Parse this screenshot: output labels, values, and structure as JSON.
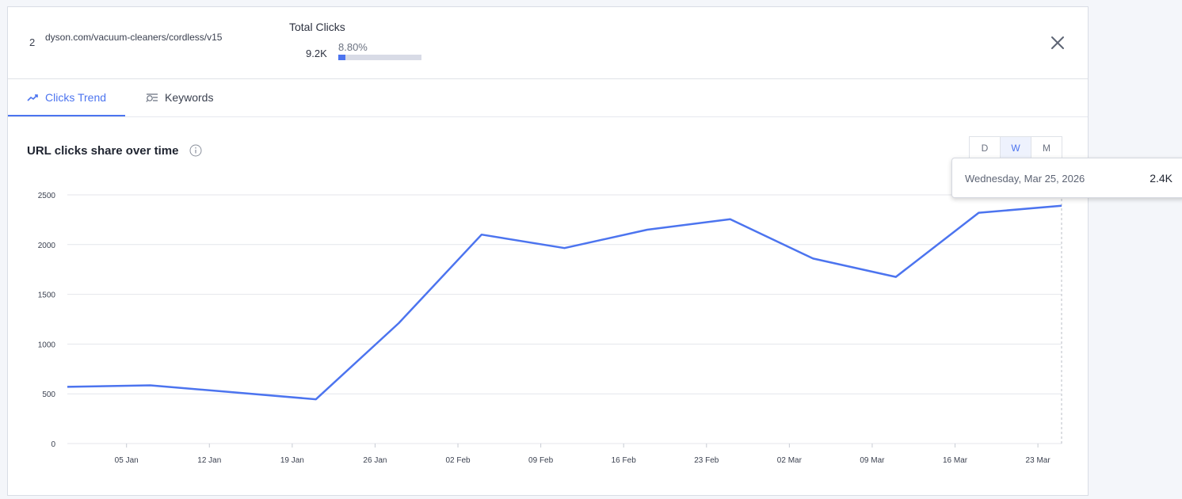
{
  "header": {
    "row_number": "2",
    "url": "dyson.com/vacuum-cleaners/cordless/v15",
    "total_clicks_label": "Total Clicks",
    "total_clicks_value": "9.2K",
    "share_percent_label": "8.80%",
    "share_fraction": 0.088
  },
  "tabs": [
    {
      "label": "Clicks Trend",
      "icon": "trend-up-icon",
      "active": true
    },
    {
      "label": "Keywords",
      "icon": "keyword-search-icon",
      "active": false
    }
  ],
  "chart_section": {
    "title": "URL clicks share over time",
    "granularity_options": [
      "D",
      "W",
      "M"
    ],
    "selected_granularity": "W"
  },
  "tooltip": {
    "date": "Wednesday, Mar 25, 2026",
    "value": "2.4K"
  },
  "colors": {
    "accent": "#4c74ef",
    "grid": "#e4e6eb",
    "bar_track": "#d8dbe6"
  },
  "chart_data": {
    "type": "line",
    "x": [
      "2025-12-31",
      "2026-01-07",
      "2026-01-14",
      "2026-01-21",
      "2026-01-28",
      "2026-02-04",
      "2026-02-11",
      "2026-02-18",
      "2026-02-25",
      "2026-03-04",
      "2026-03-11",
      "2026-03-18",
      "2026-03-25"
    ],
    "series": [
      {
        "values": [
          570,
          585,
          515,
          445,
          1210,
          2100,
          1965,
          2150,
          2255,
          1860,
          1675,
          2320,
          2390
        ]
      }
    ],
    "x_ticks": [
      "05 Jan",
      "12 Jan",
      "19 Jan",
      "26 Jan",
      "02 Feb",
      "09 Feb",
      "16 Feb",
      "23 Feb",
      "02 Mar",
      "09 Mar",
      "16 Mar",
      "23 Mar"
    ],
    "y_ticks": [
      0,
      500,
      1000,
      1500,
      2000,
      2500
    ],
    "ylim": [
      0,
      2500
    ],
    "grid": true,
    "legend": "none",
    "xlabel": "",
    "ylabel": ""
  }
}
